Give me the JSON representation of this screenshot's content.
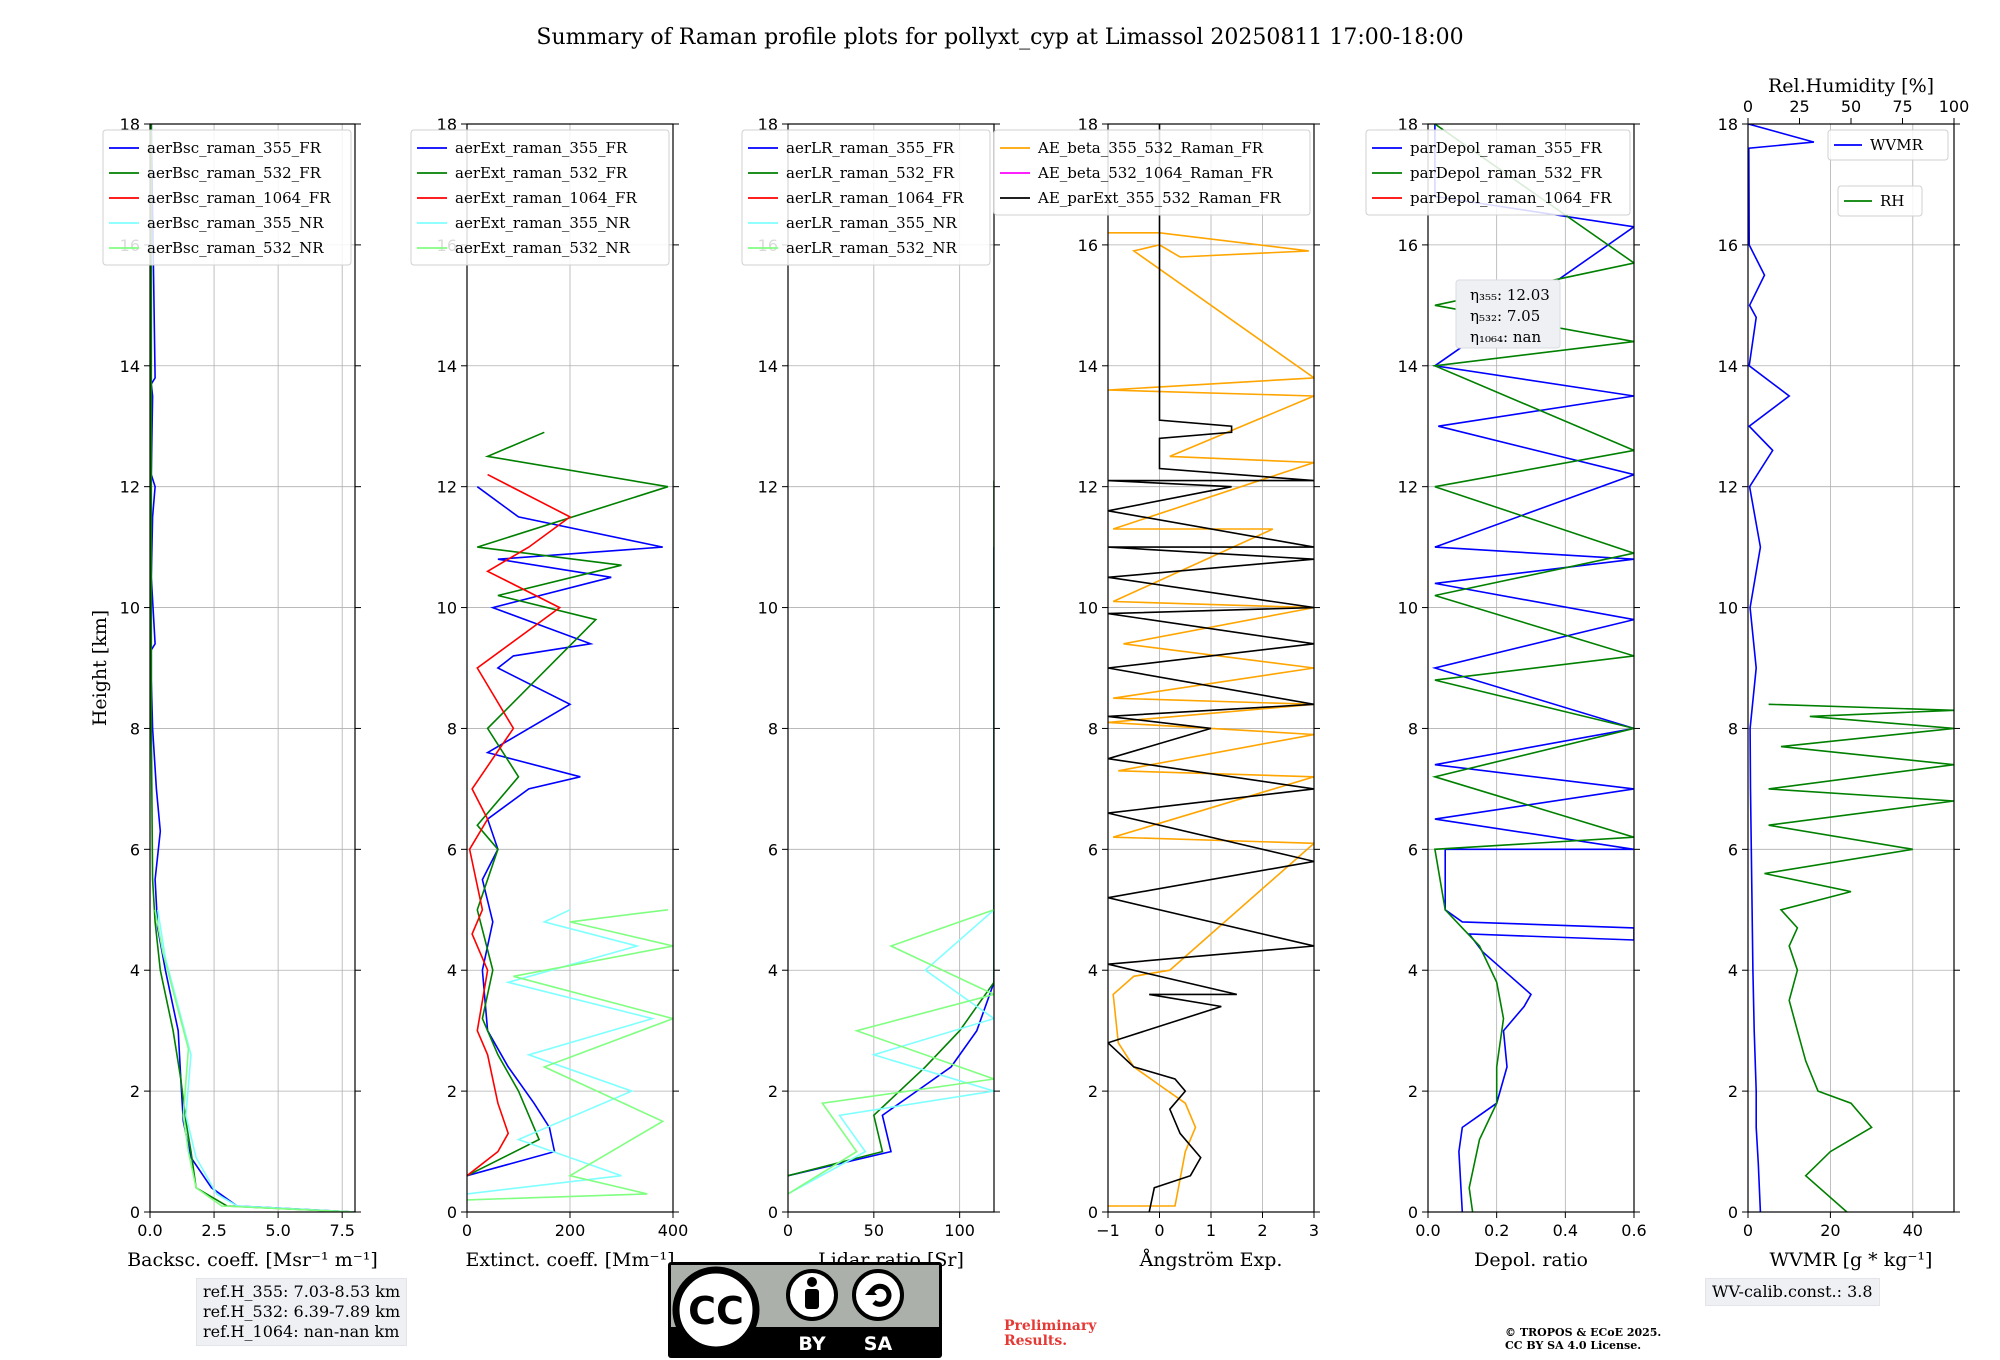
{
  "title": "Summary of Raman profile plots for pollyxt_cyp at Limassol 20250811 17:00-18:00",
  "colors": {
    "blue": "#0000ff",
    "green": "#008000",
    "red": "#ff0000",
    "cyan": "#80ffff",
    "lightgreen": "#80ff80",
    "orange": "#ffa500",
    "magenta": "#ff00ff",
    "black": "#000000"
  },
  "chart_data": [
    {
      "type": "line",
      "id": "bsc",
      "xlabel": "Backsc. coeff. [Msr⁻¹ m⁻¹]",
      "ylabel": "Height [km]",
      "xlim": [
        0,
        8
      ],
      "ylim": [
        0,
        18
      ],
      "xticks": [
        0,
        2.5,
        5,
        7.5
      ],
      "xticklabels": [
        "0.0",
        "2.5",
        "5.0",
        "7.5"
      ],
      "yticks": [
        0,
        2,
        4,
        6,
        8,
        10,
        12,
        14,
        16,
        18
      ],
      "legend": "top-right",
      "series": [
        {
          "name": "aerBsc_raman_355_FR",
          "color": "#0000ff",
          "x": [
            8,
            3.4,
            2.4,
            1.6,
            1.3,
            1.2,
            1.1,
            0.6,
            0.3,
            0.2,
            0.4,
            0.25,
            0.1,
            0.05,
            0.05,
            0.2,
            0.05,
            0.1,
            0.2,
            0.05,
            0.1,
            0.05,
            0.2,
            0.05
          ],
          "y": [
            0,
            0.1,
            0.4,
            0.9,
            1.5,
            2.2,
            3,
            4,
            4.7,
            5.5,
            6.3,
            7,
            8,
            8.8,
            9.3,
            9.4,
            10.5,
            11.5,
            12,
            12.2,
            13.5,
            13.7,
            13.8,
            18
          ]
        },
        {
          "name": "aerBsc_raman_532_FR",
          "color": "#008000",
          "x": [
            8,
            3,
            1.8,
            1.6,
            1.4,
            1.2,
            0.9,
            0.4,
            0.2,
            0.1,
            0.05,
            0.05
          ],
          "y": [
            0,
            0.1,
            0.4,
            1,
            1.5,
            2.2,
            3,
            4,
            4.8,
            5.5,
            8,
            18
          ]
        },
        {
          "name": "aerBsc_raman_1064_FR",
          "color": "#ff0000",
          "x": [],
          "y": []
        },
        {
          "name": "aerBsc_raman_355_NR",
          "color": "#80ffff",
          "x": [
            8,
            3.4,
            2.6,
            1.8,
            1.4,
            1.6,
            1.1,
            0.6,
            0.3
          ],
          "y": [
            0,
            0.1,
            0.3,
            0.9,
            1.6,
            2.6,
            3.4,
            4.2,
            5
          ]
        },
        {
          "name": "aerBsc_raman_532_NR",
          "color": "#80ff80",
          "x": [
            8,
            2.8,
            1.8,
            1.5,
            1.3,
            1.5,
            1,
            0.5,
            0.2
          ],
          "y": [
            0,
            0.1,
            0.4,
            1,
            1.6,
            2.7,
            3.5,
            4.3,
            5
          ]
        }
      ]
    },
    {
      "type": "line",
      "id": "ext",
      "xlabel": "Extinct. coeff. [Mm⁻¹]",
      "xlim": [
        0,
        400
      ],
      "ylim": [
        0,
        18
      ],
      "xticks": [
        0,
        200,
        400
      ],
      "xticklabels": [
        "0",
        "200",
        "400"
      ],
      "yticks": [
        0,
        2,
        4,
        6,
        8,
        10,
        12,
        14,
        16,
        18
      ],
      "legend": "top-right",
      "series": [
        {
          "name": "aerExt_raman_355_FR",
          "color": "#0000ff",
          "x": [
            0,
            170,
            160,
            130,
            80,
            40,
            30,
            50,
            30,
            60,
            40,
            120,
            220,
            40,
            200,
            60,
            90,
            240,
            50,
            280,
            60,
            380,
            100,
            20
          ],
          "y": [
            0.6,
            1,
            1.4,
            1.8,
            2.4,
            3,
            4,
            4.8,
            5.5,
            6,
            6.5,
            7,
            7.2,
            7.6,
            8.4,
            9,
            9.2,
            9.4,
            10,
            10.5,
            10.8,
            11,
            11.5,
            12
          ]
        },
        {
          "name": "aerExt_raman_532_FR",
          "color": "#008000",
          "x": [
            0,
            140,
            120,
            100,
            60,
            30,
            50,
            20,
            60,
            20,
            100,
            40,
            250,
            60,
            300,
            20,
            390,
            40,
            150
          ],
          "y": [
            0.6,
            1.2,
            1.6,
            2,
            2.6,
            3.2,
            4,
            5,
            6,
            6.4,
            7.2,
            8,
            9.8,
            10.2,
            10.7,
            11,
            12,
            12.5,
            12.9
          ]
        },
        {
          "name": "aerExt_raman_1064_FR",
          "color": "#ff0000",
          "x": [
            0,
            60,
            80,
            60,
            40,
            20,
            40,
            10,
            30,
            5,
            40,
            10,
            90,
            20,
            180,
            40,
            120,
            200,
            40
          ],
          "y": [
            0.6,
            1,
            1.3,
            1.8,
            2.6,
            3,
            4,
            4.6,
            5,
            6,
            6.5,
            7,
            8,
            9,
            10,
            10.6,
            11,
            11.5,
            12.2
          ]
        },
        {
          "name": "aerExt_raman_355_NR",
          "color": "#80ffff",
          "x": [
            0,
            300,
            100,
            320,
            120,
            360,
            80,
            330,
            150,
            200
          ],
          "y": [
            0.3,
            0.6,
            1.2,
            2,
            2.6,
            3.2,
            3.8,
            4.4,
            4.8,
            5
          ]
        },
        {
          "name": "aerExt_raman_532_NR",
          "color": "#80ff80",
          "x": [
            0,
            350,
            200,
            380,
            150,
            400,
            90,
            400,
            200,
            390
          ],
          "y": [
            0.2,
            0.3,
            0.6,
            1.5,
            2.4,
            3.2,
            3.9,
            4.4,
            4.8,
            5
          ]
        }
      ]
    },
    {
      "type": "line",
      "id": "lr",
      "xlabel": "Lidar ratio [Sr]",
      "xlim": [
        0,
        120
      ],
      "ylim": [
        0,
        18
      ],
      "xticks": [
        0,
        50,
        100
      ],
      "xticklabels": [
        "0",
        "50",
        "100"
      ],
      "yticks": [
        0,
        2,
        4,
        6,
        8,
        10,
        12,
        14,
        16,
        18
      ],
      "legend": "top-right",
      "series": [
        {
          "name": "aerLR_raman_355_FR",
          "color": "#0000ff",
          "x": [
            0,
            60,
            55,
            75,
            95,
            110,
            120,
            120,
            120,
            120,
            120
          ],
          "y": [
            0.6,
            1,
            1.6,
            2,
            2.4,
            3,
            3.8,
            5,
            7,
            8.5,
            11
          ]
        },
        {
          "name": "aerLR_raman_532_FR",
          "color": "#008000",
          "x": [
            0,
            55,
            50,
            65,
            80,
            100,
            120,
            120,
            120,
            120,
            120
          ],
          "y": [
            0.6,
            1,
            1.6,
            2,
            2.4,
            3,
            3.8,
            5,
            7,
            9.5,
            12.1
          ]
        },
        {
          "name": "aerLR_raman_1064_FR",
          "color": "#ff0000",
          "x": [],
          "y": []
        },
        {
          "name": "aerLR_raman_355_NR",
          "color": "#80ffff",
          "x": [
            0,
            45,
            30,
            120,
            50,
            120,
            80,
            120
          ],
          "y": [
            0.3,
            1,
            1.6,
            2,
            2.6,
            3.2,
            4,
            5
          ]
        },
        {
          "name": "aerLR_raman_532_NR",
          "color": "#80ff80",
          "x": [
            0,
            40,
            20,
            120,
            40,
            120,
            60,
            120
          ],
          "y": [
            0.3,
            1,
            1.8,
            2.2,
            3,
            3.6,
            4.4,
            5
          ]
        }
      ]
    },
    {
      "type": "line",
      "id": "ae",
      "xlabel": "Ångström Exp.",
      "xlim": [
        -1,
        3
      ],
      "ylim": [
        0,
        18
      ],
      "xticks": [
        -1,
        0,
        1,
        2,
        3
      ],
      "xticklabels": [
        "−1",
        "0",
        "1",
        "2",
        "3"
      ],
      "yticks": [
        0,
        2,
        4,
        6,
        8,
        10,
        12,
        14,
        16,
        18
      ],
      "legend": "top-right",
      "series": [
        {
          "name": "AE_beta_355_532_Raman_FR",
          "color": "#ffa500",
          "x": [
            -1,
            0.3,
            0.5,
            0.7,
            0.5,
            0,
            -0.5,
            -0.8,
            -0.9,
            -0.5,
            0.2,
            3,
            -0.9,
            3,
            -0.8,
            3,
            -1,
            3,
            -0.9,
            3,
            -0.7,
            3,
            -0.9,
            2.2,
            -0.9,
            3,
            0.2,
            3,
            -1,
            3,
            -0.5,
            0,
            0.4,
            2.9,
            0,
            -1
          ],
          "y": [
            0.1,
            0.1,
            1,
            1.4,
            1.8,
            2.1,
            2.4,
            2.8,
            3.6,
            3.9,
            4,
            6.1,
            6.2,
            7.2,
            7.3,
            7.9,
            8.1,
            8.4,
            8.5,
            9,
            9.4,
            10,
            10.1,
            11.3,
            11.3,
            12.4,
            12.5,
            13.5,
            13.6,
            13.8,
            15.9,
            16,
            15.8,
            15.9,
            16.2,
            16.2
          ]
        },
        {
          "name": "AE_beta_532_1064_Raman_FR",
          "color": "#ff00ff",
          "x": [],
          "y": []
        },
        {
          "name": "AE_parExt_355_532_Raman_FR",
          "color": "#000000",
          "x": [
            -0.2,
            -0.1,
            0.6,
            0.8,
            0.4,
            0.2,
            0.5,
            0.3,
            -0.5,
            -1,
            1.2,
            -0.2,
            1.5,
            -1,
            3,
            -1,
            3,
            -1,
            3,
            -1,
            1,
            -1,
            3,
            -1,
            3,
            -1,
            3,
            -1,
            3,
            -1,
            3,
            -1,
            1.4,
            -1,
            3,
            0,
            0,
            1.4,
            1.4,
            0,
            0,
            0
          ],
          "y": [
            0,
            0.4,
            0.6,
            0.9,
            1.3,
            1.7,
            2,
            2.2,
            2.4,
            2.8,
            3.4,
            3.6,
            3.6,
            4.1,
            4.4,
            5.2,
            5.8,
            6.6,
            7,
            7.5,
            8,
            8.2,
            8.4,
            9,
            9.4,
            9.9,
            10,
            10.5,
            10.8,
            11,
            11,
            11.6,
            12,
            12.1,
            12.1,
            12.3,
            12.8,
            12.9,
            13,
            13.1,
            16,
            18
          ]
        }
      ]
    },
    {
      "type": "line",
      "id": "depol",
      "xlabel": "Depol. ratio",
      "xlim": [
        0,
        0.6
      ],
      "ylim": [
        0,
        18
      ],
      "xticks": [
        0,
        0.2,
        0.4,
        0.6
      ],
      "xticklabels": [
        "0.0",
        "0.2",
        "0.4",
        "0.6"
      ],
      "yticks": [
        0,
        2,
        4,
        6,
        8,
        10,
        12,
        14,
        16,
        18
      ],
      "legend": "top-right",
      "series": [
        {
          "name": "parDepol_raman_355_FR",
          "color": "#0000ff",
          "x": [
            0.1,
            0.09,
            0.1,
            0.15,
            0.2,
            0.23,
            0.22,
            0.28,
            0.3,
            0.22,
            0.16,
            0.12,
            0.6,
            0.6,
            0.1,
            0.05,
            0.05,
            0.6,
            0.02,
            0.6,
            0.02,
            0.6,
            0.02,
            0.6,
            0.02,
            0.6,
            0.02,
            0.6,
            0.03,
            0.6,
            0.02,
            0.6,
            0.02,
            0.02
          ],
          "y": [
            0,
            1,
            1.4,
            1.6,
            1.8,
            2.4,
            3,
            3.4,
            3.6,
            4,
            4.3,
            4.6,
            4.5,
            4.7,
            4.8,
            5,
            6,
            6,
            6.5,
            7,
            7.4,
            8,
            9,
            9.8,
            10.4,
            10.8,
            11,
            12.2,
            13,
            13.5,
            14,
            16.3,
            16.8,
            18
          ]
        },
        {
          "name": "parDepol_raman_532_FR",
          "color": "#008000",
          "x": [
            0.13,
            0.12,
            0.15,
            0.2,
            0.2,
            0.22,
            0.2,
            0.15,
            0.1,
            0.05,
            0.02,
            0.6,
            0.02,
            0.6,
            0.02,
            0.6,
            0.02,
            0.6,
            0.02,
            0.6,
            0.02,
            0.6,
            0.02,
            0.6,
            0.02
          ],
          "y": [
            0,
            0.4,
            1.2,
            1.8,
            2.4,
            3.2,
            3.8,
            4.4,
            4.7,
            5,
            6,
            6.2,
            7.2,
            8,
            8.8,
            9.2,
            10.2,
            10.9,
            12,
            12.6,
            14,
            14.4,
            15,
            15.7,
            18
          ]
        },
        {
          "name": "parDepol_raman_1064_FR",
          "color": "#ff0000",
          "x": [],
          "y": []
        }
      ],
      "annotation": {
        "eta355": "η₃₅₅: 12.03",
        "eta532": "η₅₃₂: 7.05",
        "eta1064": "η₁₀₆₄: nan"
      }
    },
    {
      "type": "line",
      "id": "wv",
      "xlabel": "WVMR [g * kg⁻¹]",
      "top_xlabel": "Rel.Humidity [%]",
      "xlim": [
        0,
        50
      ],
      "ylim": [
        0,
        18
      ],
      "xticks": [
        0,
        20,
        40
      ],
      "xticklabels": [
        "0",
        "20",
        "40"
      ],
      "top_xlim": [
        0,
        100
      ],
      "top_xticks": [
        0,
        25,
        50,
        75,
        100
      ],
      "top_xticklabels": [
        "0",
        "25",
        "50",
        "75",
        "100"
      ],
      "yticks": [
        0,
        2,
        4,
        6,
        8,
        10,
        12,
        14,
        16,
        18
      ],
      "legend": "top-right",
      "series": [
        {
          "name": "WVMR",
          "color": "#0000ff",
          "x": [
            3,
            2.5,
            2,
            2,
            1.5,
            1.2,
            1,
            0.8,
            0.6,
            0.5,
            2,
            0.5,
            3,
            0.4,
            6,
            0.3,
            10,
            0.3,
            2,
            0.4,
            4,
            0.3,
            0.2,
            16,
            0.1
          ],
          "y": [
            0,
            0.8,
            1.4,
            2,
            3,
            4,
            5,
            6,
            7,
            8,
            9,
            10,
            11,
            12,
            12.6,
            13,
            13.5,
            14,
            14.8,
            15,
            15.5,
            16,
            17.6,
            17.7,
            18
          ]
        },
        {
          "name": "RH",
          "color": "#008000",
          "x": [
            24,
            14,
            20,
            30,
            25,
            17,
            14,
            12,
            10,
            12,
            10,
            12,
            8,
            25,
            4,
            40,
            5,
            50,
            5,
            50,
            8,
            50,
            15,
            50,
            5
          ],
          "y": [
            0,
            0.6,
            1,
            1.4,
            1.8,
            2,
            2.5,
            3,
            3.5,
            4,
            4.4,
            4.7,
            5,
            5.3,
            5.6,
            6,
            6.4,
            6.8,
            7,
            7.4,
            7.7,
            8,
            8.2,
            8.3,
            8.4
          ]
        }
      ]
    }
  ],
  "info": {
    "refH355": "ref.H_355: 7.03-8.53 km",
    "refH532": "ref.H_532: 6.39-7.89 km",
    "refH1064": "ref.H_1064: nan-nan km",
    "wvcalib": "WV-calib.const.: 3.8",
    "prelim1": "Preliminary",
    "prelim2": "Results.",
    "copyright1": "© TROPOS & ECoE 2025.",
    "copyright2": "CC BY SA 4.0 License."
  },
  "license_badge": {
    "cc": "CC",
    "by": "BY",
    "sa": "SA"
  }
}
